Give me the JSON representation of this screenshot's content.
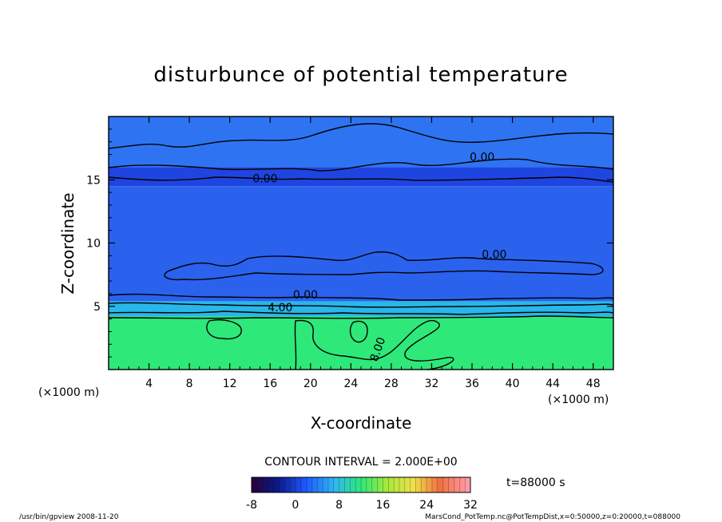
{
  "chart_data": {
    "type": "heatmap",
    "title": "disturbunce of potential temperature",
    "xlabel": "X-coordinate",
    "ylabel": "Z-coordinate",
    "x_unit": "(×1000 m)",
    "z_unit": "(×1000 m)",
    "xlim": [
      0,
      50
    ],
    "ylim": [
      0,
      20
    ],
    "x_ticks": [
      4,
      8,
      12,
      16,
      20,
      24,
      28,
      32,
      36,
      40,
      44,
      48
    ],
    "y_ticks": [
      5,
      10,
      15
    ],
    "contour_interval": "CONTOUR INTERVAL = 2.000E+00",
    "time": "t=88000 s",
    "colorbar": {
      "min": -8,
      "max": 32,
      "ticks": [
        -8,
        0,
        8,
        16,
        24,
        32
      ]
    },
    "regions": [
      {
        "name": "lower",
        "zrange": [
          0,
          4.2
        ],
        "value": 8,
        "color": "#2ee87a"
      },
      {
        "name": "transition",
        "zrange": [
          4.2,
          5.4
        ],
        "value": 2,
        "color": "#28b7e8"
      },
      {
        "name": "middle",
        "zrange": [
          5.4,
          14.5
        ],
        "value": -2,
        "color": "#2a62ee"
      },
      {
        "name": "upper-dark",
        "zrange": [
          14.5,
          16.0
        ],
        "value": -4,
        "color": "#1f45e0"
      },
      {
        "name": "upper",
        "zrange": [
          16.0,
          20
        ],
        "value": -2,
        "color": "#2e74f2"
      }
    ],
    "contour_labels": [
      {
        "text": "0.00",
        "x": 15.5,
        "z": 14.8
      },
      {
        "text": "0.00",
        "x": 37.0,
        "z": 16.5
      },
      {
        "text": "0.00",
        "x": 38.2,
        "z": 8.8
      },
      {
        "text": "0.00",
        "x": 19.5,
        "z": 5.6
      },
      {
        "text": "4.00",
        "x": 17.0,
        "z": 4.6
      },
      {
        "text": "8.00",
        "x": 27.0,
        "z": 1.5
      }
    ]
  },
  "footer": {
    "left": "/usr/bin/gpview  2008-11-20",
    "right": "MarsCond_PotTemp.nc@PotTempDist,x=0:50000,z=0:20000,t=088000"
  }
}
